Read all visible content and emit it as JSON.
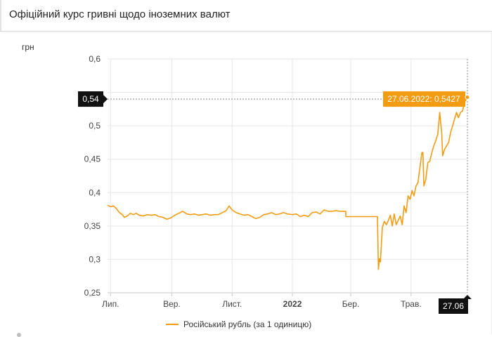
{
  "header": {
    "title": "Офіційний курс гривні щодо іноземних валют"
  },
  "chart_data": {
    "type": "line",
    "title": "Офіційний курс гривні щодо іноземних валют",
    "ylabel": "грн",
    "xlabel": "",
    "ylim": [
      0.25,
      0.6
    ],
    "yticks": [
      0.25,
      0.3,
      0.35,
      0.4,
      0.45,
      0.5,
      0.55,
      0.6
    ],
    "ytick_labels": [
      "0,25",
      "0,3",
      "0,35",
      "0,4",
      "0,45",
      "0,5",
      "",
      "0,6"
    ],
    "xlim": [
      "2021-06-28",
      "2022-06-27"
    ],
    "xticks": [
      {
        "date": "2021-07-01",
        "label": "Лип.",
        "bold": false
      },
      {
        "date": "2021-09-01",
        "label": "Вер.",
        "bold": false
      },
      {
        "date": "2021-11-01",
        "label": "Лист.",
        "bold": false
      },
      {
        "date": "2022-01-01",
        "label": "2022",
        "bold": true
      },
      {
        "date": "2022-03-01",
        "label": "Бер.",
        "bold": false
      },
      {
        "date": "2022-05-01",
        "label": "Трав.",
        "bold": false
      }
    ],
    "grid": true,
    "legend": "bottom-center",
    "series": [
      {
        "name": "Російський рубль (за 1 одиницю)",
        "color": "#f39c12",
        "points": [
          [
            "2021-06-28",
            0.381
          ],
          [
            "2021-07-01",
            0.379
          ],
          [
            "2021-07-04",
            0.38
          ],
          [
            "2021-07-07",
            0.376
          ],
          [
            "2021-07-10",
            0.37
          ],
          [
            "2021-07-13",
            0.367
          ],
          [
            "2021-07-15",
            0.363
          ],
          [
            "2021-07-18",
            0.365
          ],
          [
            "2021-07-21",
            0.369
          ],
          [
            "2021-07-24",
            0.367
          ],
          [
            "2021-07-27",
            0.369
          ],
          [
            "2021-07-30",
            0.366
          ],
          [
            "2021-08-03",
            0.365
          ],
          [
            "2021-08-07",
            0.367
          ],
          [
            "2021-08-11",
            0.366
          ],
          [
            "2021-08-15",
            0.367
          ],
          [
            "2021-08-19",
            0.364
          ],
          [
            "2021-08-23",
            0.363
          ],
          [
            "2021-08-27",
            0.36
          ],
          [
            "2021-08-31",
            0.362
          ],
          [
            "2021-09-04",
            0.366
          ],
          [
            "2021-09-08",
            0.369
          ],
          [
            "2021-09-12",
            0.372
          ],
          [
            "2021-09-16",
            0.368
          ],
          [
            "2021-09-20",
            0.367
          ],
          [
            "2021-09-24",
            0.368
          ],
          [
            "2021-09-28",
            0.366
          ],
          [
            "2021-10-02",
            0.367
          ],
          [
            "2021-10-06",
            0.368
          ],
          [
            "2021-10-10",
            0.366
          ],
          [
            "2021-10-14",
            0.367
          ],
          [
            "2021-10-18",
            0.367
          ],
          [
            "2021-10-22",
            0.37
          ],
          [
            "2021-10-26",
            0.373
          ],
          [
            "2021-10-29",
            0.38
          ],
          [
            "2021-11-01",
            0.374
          ],
          [
            "2021-11-05",
            0.37
          ],
          [
            "2021-11-09",
            0.368
          ],
          [
            "2021-11-13",
            0.366
          ],
          [
            "2021-11-17",
            0.367
          ],
          [
            "2021-11-21",
            0.364
          ],
          [
            "2021-11-25",
            0.361
          ],
          [
            "2021-11-29",
            0.363
          ],
          [
            "2021-12-03",
            0.367
          ],
          [
            "2021-12-07",
            0.368
          ],
          [
            "2021-12-11",
            0.37
          ],
          [
            "2021-12-15",
            0.367
          ],
          [
            "2021-12-19",
            0.368
          ],
          [
            "2021-12-23",
            0.37
          ],
          [
            "2021-12-27",
            0.368
          ],
          [
            "2022-01-01",
            0.367
          ],
          [
            "2022-01-05",
            0.368
          ],
          [
            "2022-01-09",
            0.364
          ],
          [
            "2022-01-13",
            0.366
          ],
          [
            "2022-01-17",
            0.364
          ],
          [
            "2022-01-21",
            0.37
          ],
          [
            "2022-01-25",
            0.371
          ],
          [
            "2022-01-29",
            0.368
          ],
          [
            "2022-02-02",
            0.374
          ],
          [
            "2022-02-06",
            0.372
          ],
          [
            "2022-02-10",
            0.372
          ],
          [
            "2022-02-14",
            0.373
          ],
          [
            "2022-02-18",
            0.372
          ],
          [
            "2022-02-24",
            0.372
          ],
          [
            "2022-02-24",
            0.364
          ],
          [
            "2022-03-28",
            0.364
          ],
          [
            "2022-03-29",
            0.285
          ],
          [
            "2022-03-30",
            0.301
          ],
          [
            "2022-03-31",
            0.296
          ],
          [
            "2022-04-02",
            0.348
          ],
          [
            "2022-04-04",
            0.357
          ],
          [
            "2022-04-06",
            0.352
          ],
          [
            "2022-04-08",
            0.358
          ],
          [
            "2022-04-10",
            0.366
          ],
          [
            "2022-04-12",
            0.35
          ],
          [
            "2022-04-14",
            0.368
          ],
          [
            "2022-04-16",
            0.352
          ],
          [
            "2022-04-18",
            0.358
          ],
          [
            "2022-04-20",
            0.365
          ],
          [
            "2022-04-22",
            0.352
          ],
          [
            "2022-04-24",
            0.38
          ],
          [
            "2022-04-26",
            0.37
          ],
          [
            "2022-04-28",
            0.395
          ],
          [
            "2022-04-30",
            0.39
          ],
          [
            "2022-05-02",
            0.403
          ],
          [
            "2022-05-04",
            0.395
          ],
          [
            "2022-05-06",
            0.41
          ],
          [
            "2022-05-08",
            0.415
          ],
          [
            "2022-05-10",
            0.438
          ],
          [
            "2022-05-12",
            0.46
          ],
          [
            "2022-05-13",
            0.46
          ],
          [
            "2022-05-14",
            0.41
          ],
          [
            "2022-05-16",
            0.42
          ],
          [
            "2022-05-18",
            0.445
          ],
          [
            "2022-05-20",
            0.447
          ],
          [
            "2022-05-22",
            0.46
          ],
          [
            "2022-05-24",
            0.47
          ],
          [
            "2022-05-26",
            0.478
          ],
          [
            "2022-05-28",
            0.487
          ],
          [
            "2022-05-30",
            0.52
          ],
          [
            "2022-06-01",
            0.49
          ],
          [
            "2022-06-02",
            0.455
          ],
          [
            "2022-06-04",
            0.465
          ],
          [
            "2022-06-06",
            0.47
          ],
          [
            "2022-06-08",
            0.475
          ],
          [
            "2022-06-10",
            0.49
          ],
          [
            "2022-06-12",
            0.5
          ],
          [
            "2022-06-14",
            0.51
          ],
          [
            "2022-06-16",
            0.52
          ],
          [
            "2022-06-18",
            0.512
          ],
          [
            "2022-06-20",
            0.52
          ],
          [
            "2022-06-22",
            0.522
          ],
          [
            "2022-06-24",
            0.535
          ],
          [
            "2022-06-27",
            0.5427
          ]
        ]
      }
    ],
    "crosshair": {
      "y_value": 0.54,
      "y_label": "0,54",
      "x_label": "27.06",
      "tooltip": "27.06.2022: 0,5427"
    }
  }
}
